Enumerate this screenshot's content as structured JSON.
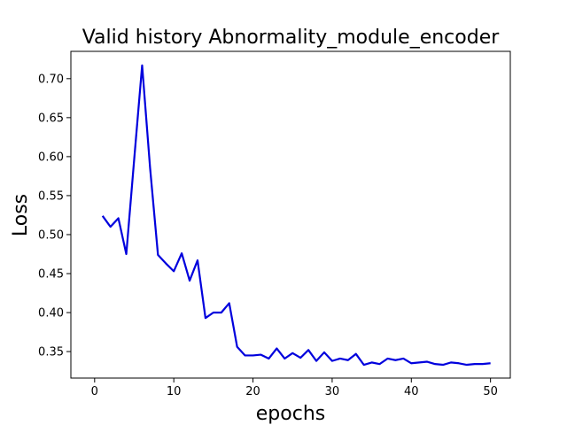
{
  "chart_data": {
    "type": "line",
    "title": "Valid history Abnormality_module_encoder",
    "xlabel": "epochs",
    "ylabel": "Loss",
    "xlim": [
      -3.0,
      52.5
    ],
    "ylim": [
      0.316,
      0.735
    ],
    "xticks": [
      0,
      10,
      20,
      30,
      40,
      50
    ],
    "yticks": [
      0.35,
      0.4,
      0.45,
      0.5,
      0.55,
      0.6,
      0.65,
      0.7
    ],
    "xtick_labels": [
      "0",
      "10",
      "20",
      "30",
      "40",
      "50"
    ],
    "ytick_labels": [
      "0.35",
      "0.40",
      "0.45",
      "0.50",
      "0.55",
      "0.60",
      "0.65",
      "0.70"
    ],
    "grid": false,
    "series": [
      {
        "color": "#0000dd",
        "x": [
          1,
          2,
          3,
          4,
          5,
          6,
          7,
          8,
          9,
          10,
          11,
          12,
          13,
          14,
          15,
          16,
          17,
          18,
          19,
          20,
          21,
          22,
          23,
          24,
          25,
          26,
          27,
          28,
          29,
          30,
          31,
          32,
          33,
          34,
          35,
          36,
          37,
          38,
          39,
          40,
          41,
          42,
          43,
          44,
          45,
          46,
          47,
          48,
          49,
          50
        ],
        "y": [
          0.524,
          0.51,
          0.521,
          0.475,
          0.597,
          0.717,
          0.586,
          0.474,
          0.463,
          0.453,
          0.476,
          0.441,
          0.467,
          0.393,
          0.4,
          0.4,
          0.412,
          0.356,
          0.345,
          0.345,
          0.346,
          0.341,
          0.354,
          0.341,
          0.348,
          0.342,
          0.352,
          0.338,
          0.349,
          0.338,
          0.341,
          0.339,
          0.347,
          0.333,
          0.336,
          0.334,
          0.341,
          0.339,
          0.341,
          0.335,
          0.336,
          0.337,
          0.334,
          0.333,
          0.336,
          0.335,
          0.333,
          0.334,
          0.334,
          0.335
        ]
      }
    ]
  }
}
